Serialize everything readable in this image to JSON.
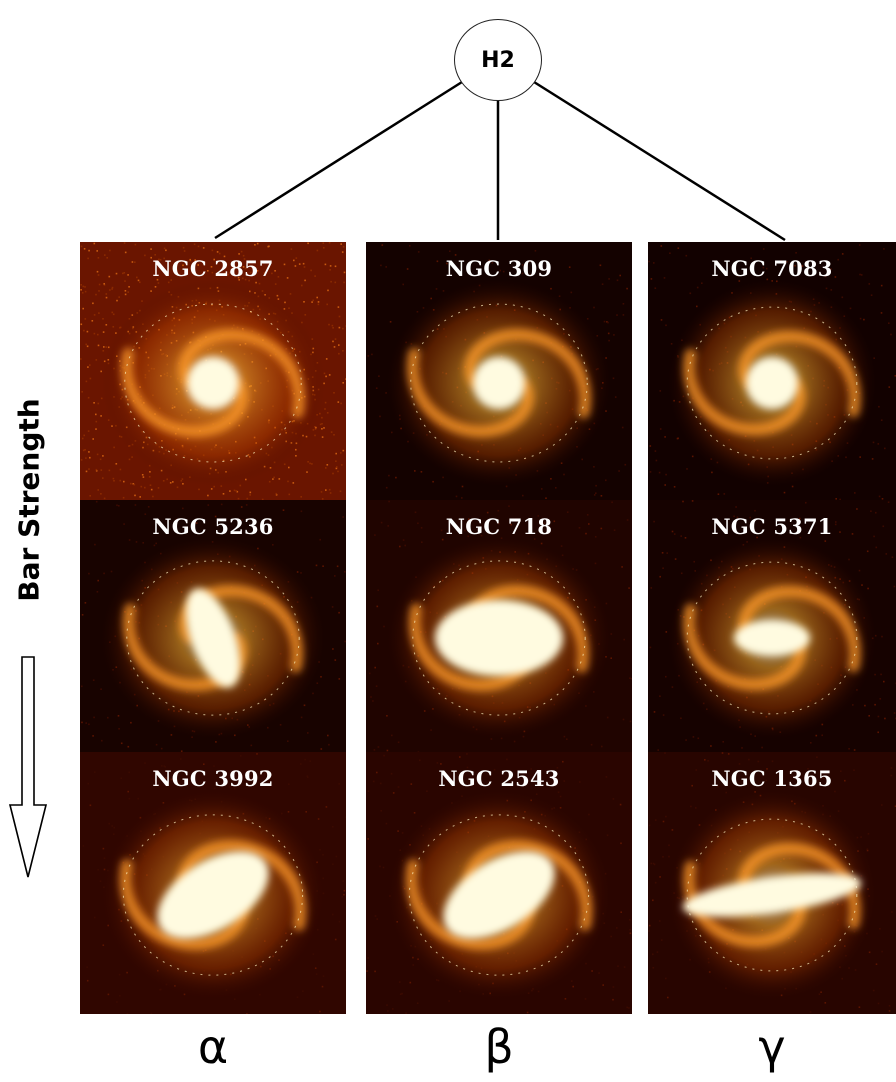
{
  "root": {
    "label": "H2"
  },
  "side_label": "Bar Strength",
  "columns": [
    "α",
    "β",
    "γ"
  ],
  "galaxies": [
    {
      "name": "NGC 2857",
      "type": "face-spiral",
      "bg": "#6a1500"
    },
    {
      "name": "NGC 309",
      "type": "spiral-core",
      "bg": "#140200"
    },
    {
      "name": "NGC 7083",
      "type": "spiral-core",
      "bg": "#120100"
    },
    {
      "name": "NGC 5236",
      "type": "weak-bar",
      "bg": "#180300"
    },
    {
      "name": "NGC 718",
      "type": "oval",
      "bg": "#200400"
    },
    {
      "name": "NGC 5371",
      "type": "weak-bar-h",
      "bg": "#160200"
    },
    {
      "name": "NGC 3992",
      "type": "bar-diag",
      "bg": "#300600"
    },
    {
      "name": "NGC 2543",
      "type": "bar-diag",
      "bg": "#2a0500"
    },
    {
      "name": "NGC 1365",
      "type": "strong-bar",
      "bg": "#280500"
    }
  ],
  "colors": {
    "core": "#fffbe0",
    "mid": "#ffb030",
    "outer": "#c04800",
    "edge": "#3a0800"
  }
}
